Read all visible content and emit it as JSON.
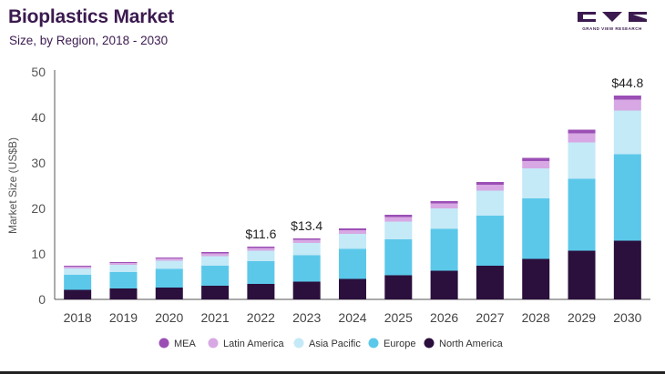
{
  "header": {
    "title": "Bioplastics Market",
    "subtitle": "Size, by Region, 2018 - 2030",
    "brand": "GRAND VIEW RESEARCH"
  },
  "chart_data": {
    "type": "bar",
    "stacked": true,
    "title": "Bioplastics Market",
    "subtitle": "Size, by Region, 2018 - 2030",
    "xlabel": "",
    "ylabel": "Market Size (US$B)",
    "ylim": [
      0,
      50
    ],
    "yticks": [
      0,
      10,
      20,
      30,
      40,
      50
    ],
    "grid": false,
    "legend_position": "bottom",
    "categories": [
      "2018",
      "2019",
      "2020",
      "2021",
      "2022",
      "2023",
      "2024",
      "2025",
      "2026",
      "2027",
      "2028",
      "2029",
      "2030"
    ],
    "series": [
      {
        "name": "North America",
        "color": "#2b0f3c",
        "values": [
          2.1,
          2.4,
          2.6,
          3.0,
          3.4,
          3.9,
          4.5,
          5.3,
          6.3,
          7.4,
          8.9,
          10.7,
          12.9
        ]
      },
      {
        "name": "Europe",
        "color": "#5bc8ea",
        "values": [
          3.3,
          3.6,
          4.1,
          4.4,
          5.0,
          5.8,
          6.6,
          7.9,
          9.2,
          11.0,
          13.3,
          15.8,
          19.0
        ]
      },
      {
        "name": "Asia Pacific",
        "color": "#c4e9f7",
        "values": [
          1.4,
          1.6,
          1.8,
          2.1,
          2.3,
          2.7,
          3.3,
          3.9,
          4.5,
          5.5,
          6.6,
          8.0,
          9.6
        ]
      },
      {
        "name": "Latin America",
        "color": "#d7a8e3",
        "values": [
          0.4,
          0.4,
          0.5,
          0.6,
          0.6,
          0.7,
          0.8,
          1.0,
          1.1,
          1.3,
          1.6,
          2.0,
          2.4
        ]
      },
      {
        "name": "MEA",
        "color": "#9b4fb5",
        "values": [
          0.2,
          0.2,
          0.2,
          0.3,
          0.3,
          0.3,
          0.4,
          0.5,
          0.5,
          0.6,
          0.7,
          0.8,
          0.9
        ]
      }
    ],
    "legend_order": [
      "MEA",
      "Latin America",
      "Asia Pacific",
      "Europe",
      "North America"
    ],
    "annotations": [
      {
        "category": "2022",
        "text": "$11.6"
      },
      {
        "category": "2023",
        "text": "$13.4"
      },
      {
        "category": "2030",
        "text": "$44.8"
      }
    ]
  }
}
